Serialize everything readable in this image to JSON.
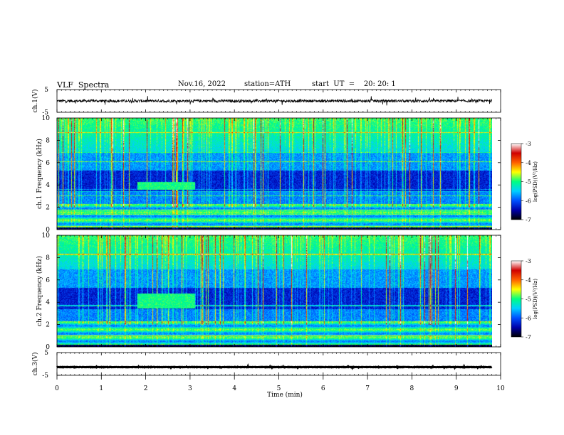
{
  "header": {
    "title": "VLF  Spectra",
    "date": "Nov.16, 2022",
    "station": "station=ATH",
    "start": "start  UT  =    20: 20: 1"
  },
  "colors": {
    "colormap": [
      "#000000",
      "#0000aa",
      "#0050ff",
      "#00d0ff",
      "#00ff80",
      "#ffff00",
      "#ff6000",
      "#d00000",
      "#ffffff"
    ],
    "trace": "#000000"
  },
  "chart_data": [
    {
      "type": "line",
      "panel": "waveform-ch1",
      "ylabel": "ch.1(V)",
      "ylim": [
        -5,
        5
      ],
      "yticks": [
        "5",
        "-5"
      ],
      "x_range": [
        0,
        9.8
      ],
      "mean": 0,
      "noise_amplitude": 1.2
    },
    {
      "type": "heatmap",
      "panel": "spectrogram-ch1",
      "ylabel": "ch.1  Frequency (kHz)",
      "ylim": [
        0,
        10
      ],
      "yticks": [
        "0",
        "2",
        "4",
        "6",
        "8",
        "10"
      ],
      "colorbar": {
        "label": "log(PSD)(V²/Hz)",
        "ticks": [
          "-3",
          "-4",
          "-5",
          "-6",
          "-7"
        ],
        "range": [
          -7,
          -3
        ]
      },
      "features": [
        {
          "name": "enhanced emission band",
          "t_start": 1.8,
          "t_end": 3.1,
          "f_low": 3.6,
          "f_high": 4.3,
          "level": -5
        }
      ]
    },
    {
      "type": "heatmap",
      "panel": "spectrogram-ch2",
      "ylabel": "ch.2  Frequency (kHz)",
      "ylim": [
        0,
        10
      ],
      "yticks": [
        "0",
        "2",
        "4",
        "6",
        "8",
        "10"
      ],
      "colorbar": {
        "label": "log(PSD)(V²/Hz)",
        "ticks": [
          "-3",
          "-4",
          "-5",
          "-6",
          "-7"
        ],
        "range": [
          -7,
          -3
        ]
      },
      "features": [
        {
          "name": "enhanced emission band",
          "t_start": 1.8,
          "t_end": 3.1,
          "f_low": 3.5,
          "f_high": 4.8,
          "level": -5
        }
      ]
    },
    {
      "type": "line",
      "panel": "waveform-ch3",
      "ylabel": "ch.3(V)",
      "ylim": [
        -5,
        5
      ],
      "yticks": [
        "5",
        "-5"
      ],
      "x_range": [
        0,
        9.8
      ],
      "mean": -1.4,
      "noise_amplitude": 0.15
    }
  ],
  "xaxis": {
    "label": "Time  (min)",
    "ticks": [
      "0",
      "1",
      "2",
      "3",
      "4",
      "5",
      "6",
      "7",
      "8",
      "9",
      "10"
    ],
    "xlim": [
      0,
      10
    ]
  }
}
